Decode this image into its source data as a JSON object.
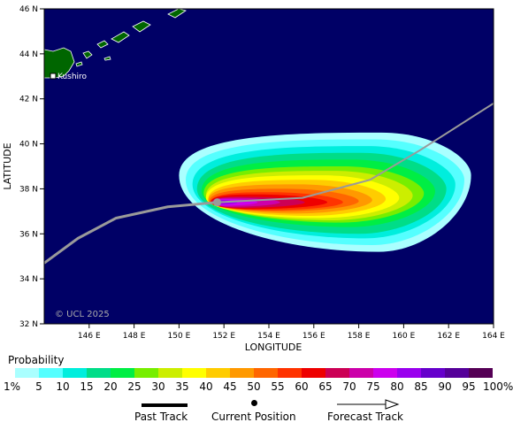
{
  "map": {
    "lat_ticks": [
      "46 N",
      "44 N",
      "42 N",
      "40 N",
      "38 N",
      "36 N",
      "34 N",
      "32 N"
    ],
    "lon_ticks": [
      "146 E",
      "148 E",
      "150 E",
      "152 E",
      "154 E",
      "156 E",
      "158 E",
      "160 E",
      "162 E",
      "164 E"
    ],
    "x_axis_title": "LONGITUDE",
    "y_axis_title": "LATITUDE",
    "city_label": "Kushiro",
    "copyright": "© UCL 2025",
    "ocean_color": "#000066",
    "land_color": "#006600",
    "track_color": "#9a9a9a",
    "lon_range": [
      144,
      164
    ],
    "lat_range": [
      32,
      46
    ],
    "past_track": [
      [
        144.0,
        34.7
      ],
      [
        145.5,
        35.8
      ],
      [
        147.2,
        36.7
      ],
      [
        149.5,
        37.2
      ],
      [
        151.7,
        37.4
      ]
    ],
    "current_position": [
      151.7,
      37.4
    ],
    "forecast_track": [
      [
        151.7,
        37.4
      ],
      [
        155.5,
        37.6
      ],
      [
        158.5,
        38.4
      ],
      [
        160.7,
        39.7
      ],
      [
        164.0,
        41.8
      ]
    ]
  },
  "legend": {
    "title": "Probability",
    "colors": [
      "#aaffff",
      "#55ffff",
      "#00eedd",
      "#00dd88",
      "#00ee44",
      "#77ee00",
      "#ccee00",
      "#ffff00",
      "#ffcc00",
      "#ff9900",
      "#ff6600",
      "#ff3300",
      "#ee0000",
      "#cc0055",
      "#cc00aa",
      "#cc00ee",
      "#9900ee",
      "#6600cc",
      "#550099",
      "#550055"
    ],
    "labels": [
      "1%",
      "5",
      "10",
      "15",
      "20",
      "25",
      "30",
      "35",
      "40",
      "45",
      "50",
      "55",
      "60",
      "65",
      "70",
      "75",
      "80",
      "85",
      "90",
      "95",
      "100%"
    ]
  },
  "keys": {
    "past_track": "Past Track",
    "current_position": "Current Position",
    "forecast_track": "Forecast Track"
  }
}
